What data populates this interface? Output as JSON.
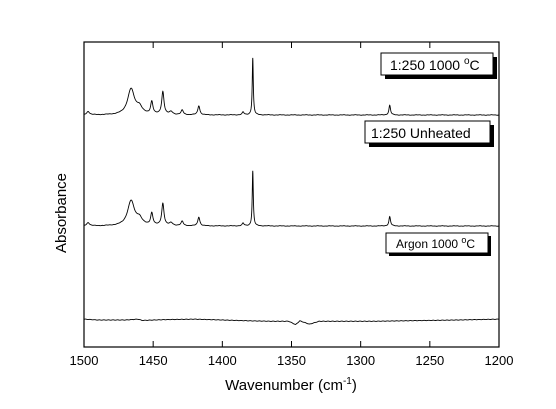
{
  "chart_data": {
    "type": "line",
    "xlabel": "Wavenumber (cm",
    "xlabel_sup": "-1",
    "xlabel_end": ")",
    "ylabel": "Absorbance",
    "xlim": [
      1500,
      1200
    ],
    "x_ticks": [
      1500,
      1450,
      1400,
      1350,
      1300,
      1250,
      1200
    ],
    "grid": false,
    "peaks": [
      {
        "x": 1497,
        "h": 0.06,
        "w": 1.2
      },
      {
        "x": 1466,
        "h": 0.45,
        "w": 3.0
      },
      {
        "x": 1460,
        "h": 0.12,
        "w": 2.5
      },
      {
        "x": 1451,
        "h": 0.22,
        "w": 1.0
      },
      {
        "x": 1443,
        "h": 0.4,
        "w": 1.0
      },
      {
        "x": 1437,
        "h": 0.05,
        "w": 1.5
      },
      {
        "x": 1429,
        "h": 0.08,
        "w": 1.0
      },
      {
        "x": 1417,
        "h": 0.16,
        "w": 0.9
      },
      {
        "x": 1385,
        "h": 0.05,
        "w": 0.8
      },
      {
        "x": 1378,
        "h": 1.0,
        "w": 0.45
      },
      {
        "x": 1279,
        "h": 0.17,
        "w": 0.7
      }
    ],
    "series": [
      {
        "name": "1:250 1000 °C",
        "kind": "spectrum",
        "scale": 1.0,
        "offset": 0
      },
      {
        "name": "1:250 Unheated",
        "kind": "spectrum",
        "scale": 1.02,
        "offset": 0
      },
      {
        "name": "Argon 1000 °C",
        "kind": "baseline",
        "points": [
          [
            1500,
            0.02
          ],
          [
            1490,
            0.0
          ],
          [
            1470,
            0.0
          ],
          [
            1461,
            0.02
          ],
          [
            1458,
            -0.01
          ],
          [
            1440,
            0.01
          ],
          [
            1420,
            0.02
          ],
          [
            1400,
            0.0
          ],
          [
            1380,
            -0.02
          ],
          [
            1365,
            -0.03
          ],
          [
            1352,
            -0.03
          ],
          [
            1347,
            -0.11
          ],
          [
            1344,
            -0.02
          ],
          [
            1337,
            -0.1
          ],
          [
            1330,
            -0.03
          ],
          [
            1310,
            -0.03
          ],
          [
            1290,
            -0.03
          ],
          [
            1270,
            -0.02
          ],
          [
            1250,
            -0.01
          ],
          [
            1230,
            0.0
          ],
          [
            1215,
            0.01
          ],
          [
            1200,
            0.02
          ]
        ]
      }
    ],
    "legend_labels": [
      {
        "prefix": "1:250 1000 ",
        "sup": "o",
        "suffix": "C"
      },
      {
        "prefix": "1:250 Unheated",
        "sup": "",
        "suffix": ""
      },
      {
        "prefix": "Argon 1000 ",
        "sup": "o",
        "suffix": "C"
      }
    ]
  }
}
